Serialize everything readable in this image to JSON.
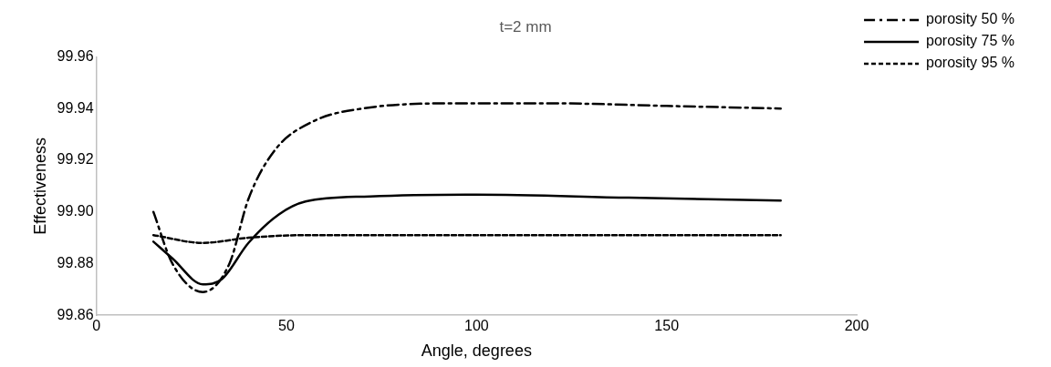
{
  "chart_data": {
    "type": "line",
    "title": "t=2 mm",
    "xlabel": "Angle, degrees",
    "ylabel": "Effectiveness",
    "xlim": [
      0,
      200
    ],
    "xticks": [
      0,
      50,
      100,
      150,
      200
    ],
    "ylim": [
      99.86,
      99.96
    ],
    "yticks": [
      99.86,
      99.88,
      {
        "value": 99.9,
        "label": "99.90"
      },
      99.92,
      99.94,
      99.96
    ],
    "grid": false,
    "legend": "right",
    "marker": "none",
    "series": [
      {
        "name": "porosity 50 %",
        "color": "#000000",
        "line_style": "dashdot",
        "x": [
          15,
          20,
          28,
          35,
          40,
          47,
          57,
          70,
          95,
          120,
          150,
          180
        ],
        "values": [
          99.9,
          99.88,
          99.869,
          99.88,
          99.905,
          99.924,
          99.935,
          99.94,
          99.942,
          99.942,
          99.941,
          99.94
        ]
      },
      {
        "name": "porosity 75 %",
        "color": "#000000",
        "line_style": "solid",
        "x": [
          15,
          20,
          28,
          33,
          40,
          48,
          55,
          72,
          100,
          140,
          180
        ],
        "values": [
          99.8885,
          99.882,
          99.872,
          99.874,
          99.888,
          99.899,
          99.904,
          99.906,
          99.9067,
          99.9055,
          99.9044
        ]
      },
      {
        "name": "porosity 95 %",
        "color": "#000000",
        "line_style": "dashed",
        "x": [
          15,
          28,
          40,
          55,
          100,
          180
        ],
        "values": [
          99.891,
          99.888,
          99.89,
          99.891,
          99.891,
          99.891
        ]
      }
    ]
  }
}
